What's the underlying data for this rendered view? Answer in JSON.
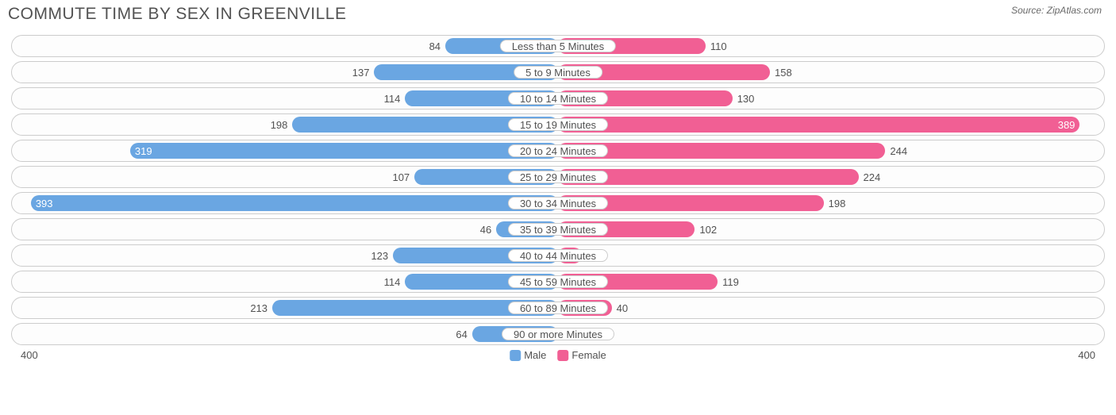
{
  "header": {
    "title": "Commute Time by Sex in Greenville",
    "source_prefix": "Source: ",
    "source_name": "ZipAtlas.com"
  },
  "chart": {
    "type": "diverging-bar",
    "axis_max": 400,
    "axis_label_left": "400",
    "axis_label_right": "400",
    "colors": {
      "male": "#6aa6e2",
      "female": "#f15f94",
      "row_border": "#cccccc",
      "background": "#ffffff",
      "text": "#525252",
      "value_inside": "#ffffff"
    },
    "legend": [
      {
        "label": "Male",
        "color": "#6aa6e2"
      },
      {
        "label": "Female",
        "color": "#f15f94"
      }
    ],
    "rows": [
      {
        "category": "Less than 5 Minutes",
        "male": 84,
        "female": 110
      },
      {
        "category": "5 to 9 Minutes",
        "male": 137,
        "female": 158
      },
      {
        "category": "10 to 14 Minutes",
        "male": 114,
        "female": 130
      },
      {
        "category": "15 to 19 Minutes",
        "male": 198,
        "female": 389
      },
      {
        "category": "20 to 24 Minutes",
        "male": 319,
        "female": 244
      },
      {
        "category": "25 to 29 Minutes",
        "male": 107,
        "female": 224
      },
      {
        "category": "30 to 34 Minutes",
        "male": 393,
        "female": 198
      },
      {
        "category": "35 to 39 Minutes",
        "male": 46,
        "female": 102
      },
      {
        "category": "40 to 44 Minutes",
        "male": 123,
        "female": 18
      },
      {
        "category": "45 to 59 Minutes",
        "male": 114,
        "female": 119
      },
      {
        "category": "60 to 89 Minutes",
        "male": 213,
        "female": 40
      },
      {
        "category": "90 or more Minutes",
        "male": 64,
        "female": 0
      }
    ],
    "inside_threshold": 260
  }
}
